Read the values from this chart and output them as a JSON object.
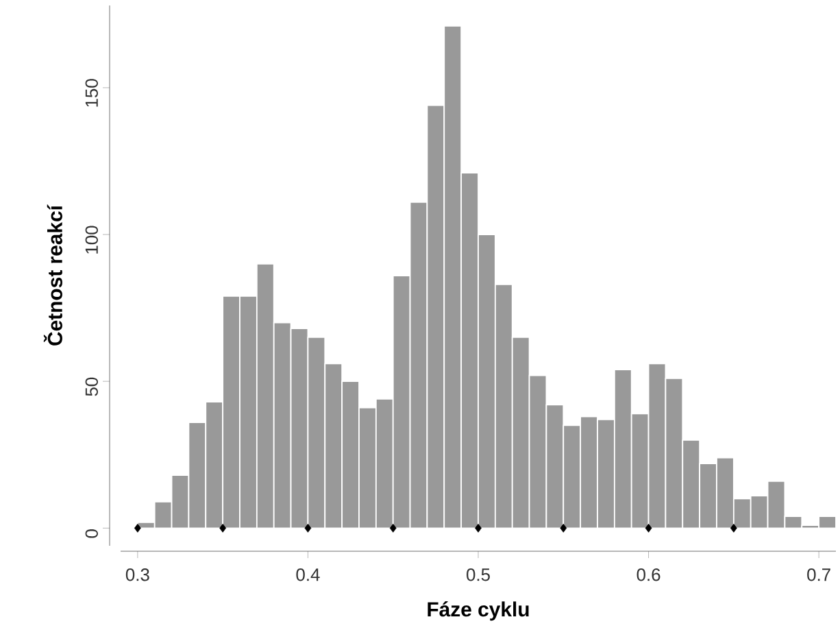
{
  "chart_data": {
    "type": "histogram",
    "xlabel": "Fáze cyklu",
    "ylabel": "Četnost reakcí",
    "bins": [
      0.3,
      0.31,
      0.32,
      0.33,
      0.34,
      0.35,
      0.36,
      0.37,
      0.38,
      0.39,
      0.4,
      0.41,
      0.42,
      0.43,
      0.44,
      0.45,
      0.46,
      0.47,
      0.48,
      0.49,
      0.5,
      0.51,
      0.52,
      0.53,
      0.54,
      0.55,
      0.56,
      0.57,
      0.58,
      0.59,
      0.6,
      0.61,
      0.62,
      0.63,
      0.64,
      0.65,
      0.66,
      0.67,
      0.68,
      0.69,
      0.7,
      0.71
    ],
    "values": [
      2,
      9,
      18,
      36,
      43,
      79,
      79,
      90,
      70,
      68,
      65,
      56,
      50,
      41,
      44,
      86,
      111,
      144,
      171,
      121,
      100,
      83,
      65,
      52,
      42,
      35,
      38,
      37,
      54,
      39,
      56,
      51,
      30,
      22,
      24,
      10,
      11,
      16,
      4,
      1,
      4
    ],
    "color": "#999999",
    "series": [
      {
        "type": "scatter",
        "color": "#000000",
        "marker": "diamond",
        "x": [
          0.3,
          0.35,
          0.4,
          0.45,
          0.5,
          0.55,
          0.6,
          0.65
        ],
        "values": [
          0,
          0,
          0,
          0,
          0,
          0,
          0,
          0
        ]
      }
    ],
    "xlim": [
      0.29,
      0.71
    ],
    "ylim": [
      -6,
      178
    ],
    "xticks": [
      0.3,
      0.4,
      0.5,
      0.6,
      0.7
    ],
    "yticks": [
      0,
      50,
      100,
      150
    ]
  }
}
